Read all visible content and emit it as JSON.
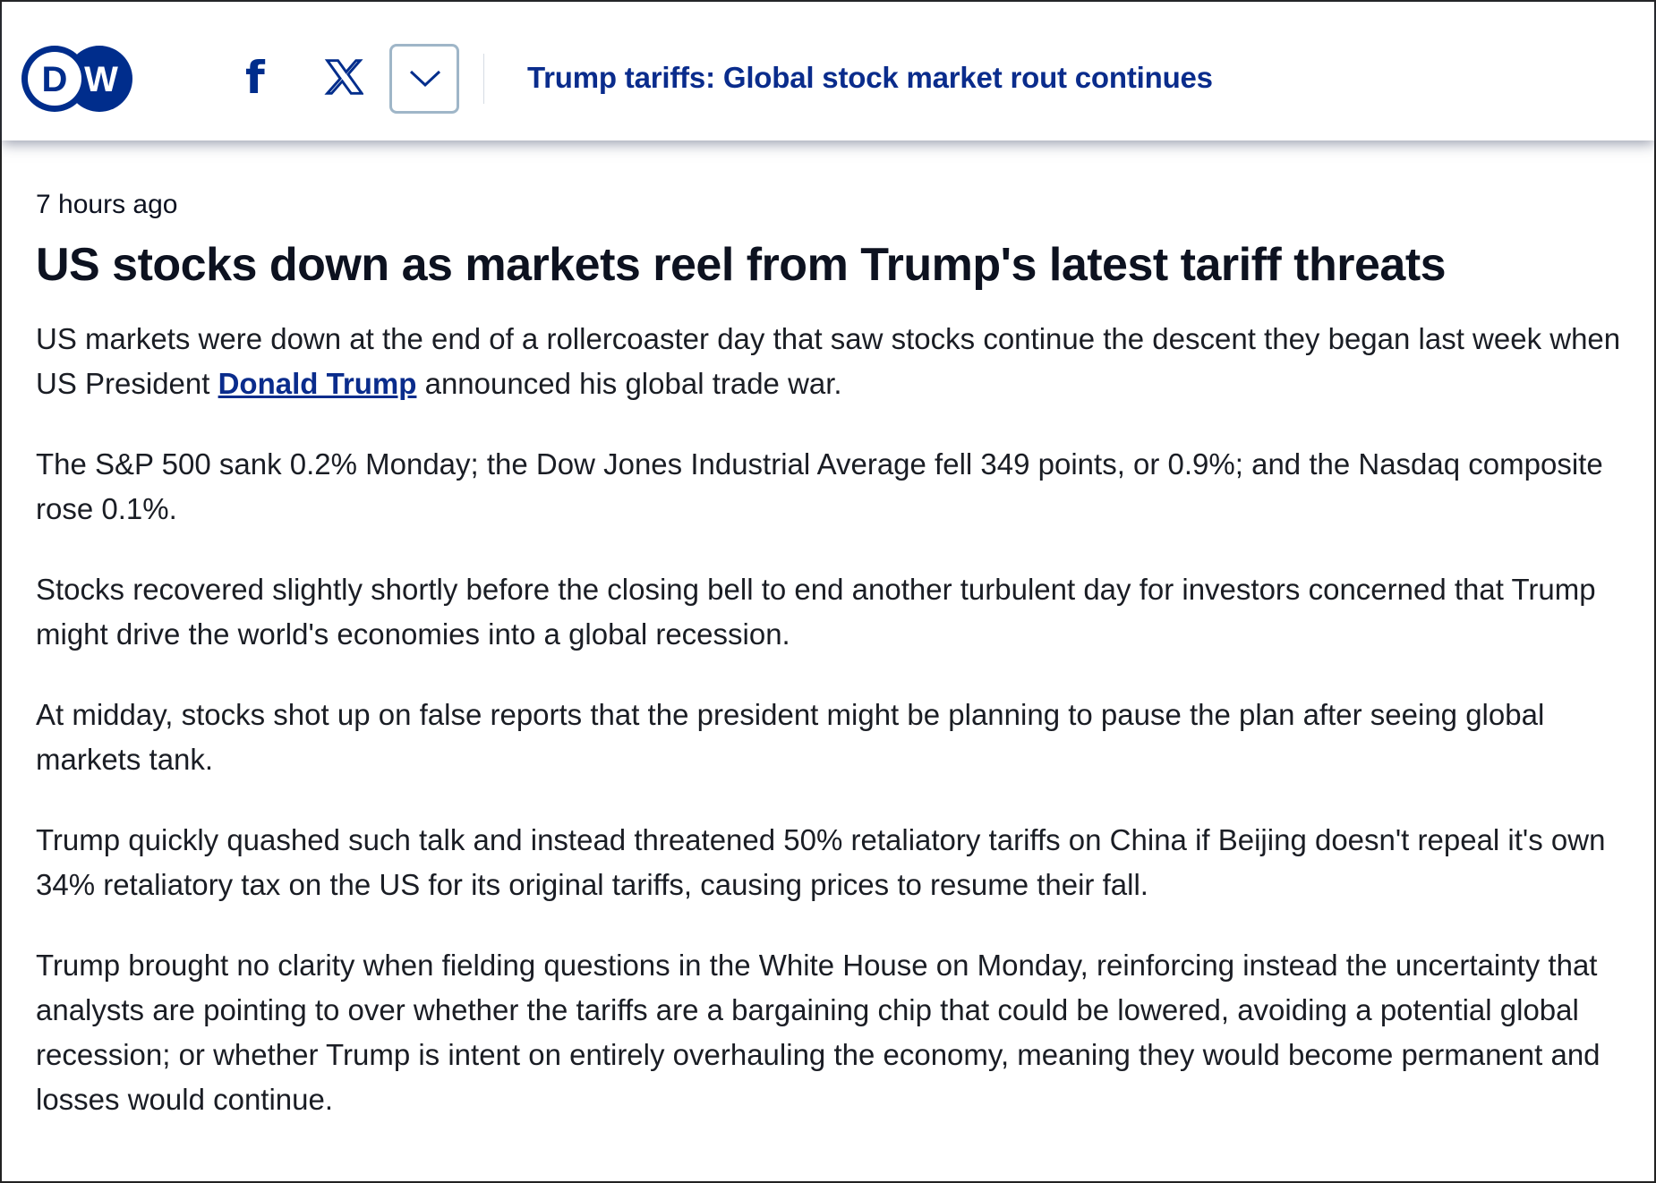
{
  "header": {
    "logo_text": "DW",
    "title": "Trump tariffs: Global stock market rout continues",
    "share_facebook": "facebook-icon",
    "share_x": "x-icon",
    "more": "chevron-down-icon"
  },
  "article": {
    "timestamp": "7 hours ago",
    "headline": "US stocks down as markets reel from Trump's latest tariff threats",
    "p1_before": "US markets were down at the end of a rollercoaster day that saw stocks continue the descent they began last week when US President ",
    "p1_link": "Donald Trump",
    "p1_after": " announced his global trade war.",
    "p2": "The S&P 500 sank 0.2% Monday; the Dow Jones Industrial Average fell 349 points, or 0.9%; and the Nasdaq composite rose 0.1%.",
    "p3": "Stocks recovered slightly shortly before the closing bell to end another turbulent day for investors concerned that Trump might drive the world's economies into a global recession.",
    "p4": "At midday, stocks shot up on false reports that the president might be planning to pause the plan after seeing global markets tank.",
    "p5": "Trump quickly quashed such talk and instead threatened 50% retaliatory tariffs on China if Beijing doesn't repeal it's own 34% retaliatory tax on the US for its original tariffs, causing prices to resume their fall.",
    "p6": "Trump brought no clarity when fielding questions in the White House on Monday, reinforcing instead the uncertainty that analysts are pointing to over whether the tariffs are a bargaining chip that could be lowered, avoiding a potential global recession; or whether Trump is intent on entirely overhauling the economy, meaning they would become permanent and losses would continue."
  }
}
